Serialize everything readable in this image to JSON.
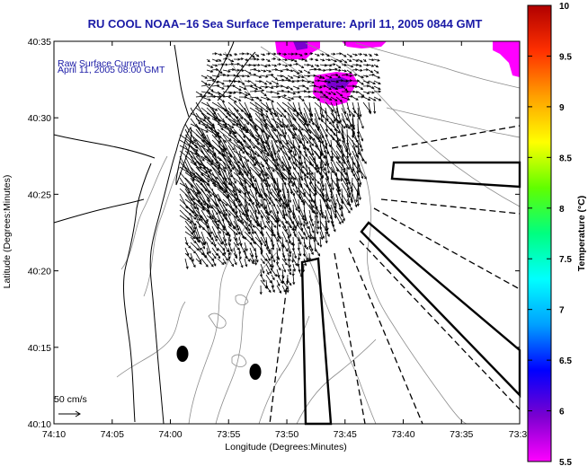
{
  "chart_data": {
    "type": "vector-field",
    "title": "RU COOL  NOAA−16  Sea Surface Temperature:  April 11, 2005 0844 GMT",
    "annotation_lines": [
      "Raw Surface Current",
      "April 11, 2005 08:00 GMT"
    ],
    "xlabel": "Longitude (Degrees:Minutes)",
    "ylabel": "Latitude (Degrees:Minutes)",
    "xlim": [
      -74.1667,
      -73.5
    ],
    "ylim": [
      40.1667,
      40.5833
    ],
    "x_ticks": [
      {
        "value": -74.1667,
        "label": "74:10"
      },
      {
        "value": -74.0833,
        "label": "74:05"
      },
      {
        "value": -74.0,
        "label": "74:00"
      },
      {
        "value": -73.9167,
        "label": "73:55"
      },
      {
        "value": -73.8333,
        "label": "73:50"
      },
      {
        "value": -73.75,
        "label": "73:45"
      },
      {
        "value": -73.6667,
        "label": "73:40"
      },
      {
        "value": -73.5833,
        "label": "73:35"
      },
      {
        "value": -73.5,
        "label": "73:3"
      }
    ],
    "y_ticks": [
      {
        "value": 40.1667,
        "label": "40:10"
      },
      {
        "value": 40.25,
        "label": "40:15"
      },
      {
        "value": 40.3333,
        "label": "40:20"
      },
      {
        "value": 40.4167,
        "label": "40:25"
      },
      {
        "value": 40.5,
        "label": "40:30"
      },
      {
        "value": 40.5833,
        "label": "40:35"
      }
    ],
    "scale_vector": {
      "label": "50 cm/s",
      "speed_cm_s": 50
    },
    "colorbar": {
      "label": "Temperature (°C)",
      "min": 5.5,
      "max": 10,
      "ticks": [
        {
          "value": 5.5,
          "label": "5.5"
        },
        {
          "value": 6,
          "label": "6"
        },
        {
          "value": 6.5,
          "label": "6.5"
        },
        {
          "value": 7,
          "label": "7"
        },
        {
          "value": 7.5,
          "label": "7.5"
        },
        {
          "value": 8,
          "label": "8"
        },
        {
          "value": 8.5,
          "label": "8.5"
        },
        {
          "value": 9,
          "label": "9"
        },
        {
          "value": 9.5,
          "label": "9.5"
        },
        {
          "value": 10,
          "label": "10"
        }
      ],
      "colors": [
        "#ff00ff",
        "#7a00d0",
        "#0000ff",
        "#00a0ff",
        "#00ffff",
        "#00ff80",
        "#60ff00",
        "#ffff00",
        "#ffa000",
        "#ff3000",
        "#b00000"
      ]
    },
    "sst_patches": [
      {
        "lon": -73.72,
        "lat": 40.575,
        "temp_c": 5.8
      },
      {
        "lon": -73.75,
        "lat": 40.555,
        "temp_c": 6.0
      },
      {
        "lon": -73.79,
        "lat": 40.535,
        "temp_c": 6.0
      },
      {
        "lon": -73.53,
        "lat": 40.56,
        "temp_c": 5.8
      }
    ],
    "vector_field": {
      "lon_range": [
        -74.03,
        -73.76
      ],
      "lat_range": [
        40.33,
        40.565
      ],
      "flow": "southeastward along the shore, turning eastward offshore",
      "max_speed_cm_s": 60
    },
    "colors": {
      "title": "#1a1aa6",
      "coast": "#000000",
      "bathymetry": "#8c8c8c",
      "vectors": "#000000"
    },
    "grid": false,
    "legend": "none"
  }
}
